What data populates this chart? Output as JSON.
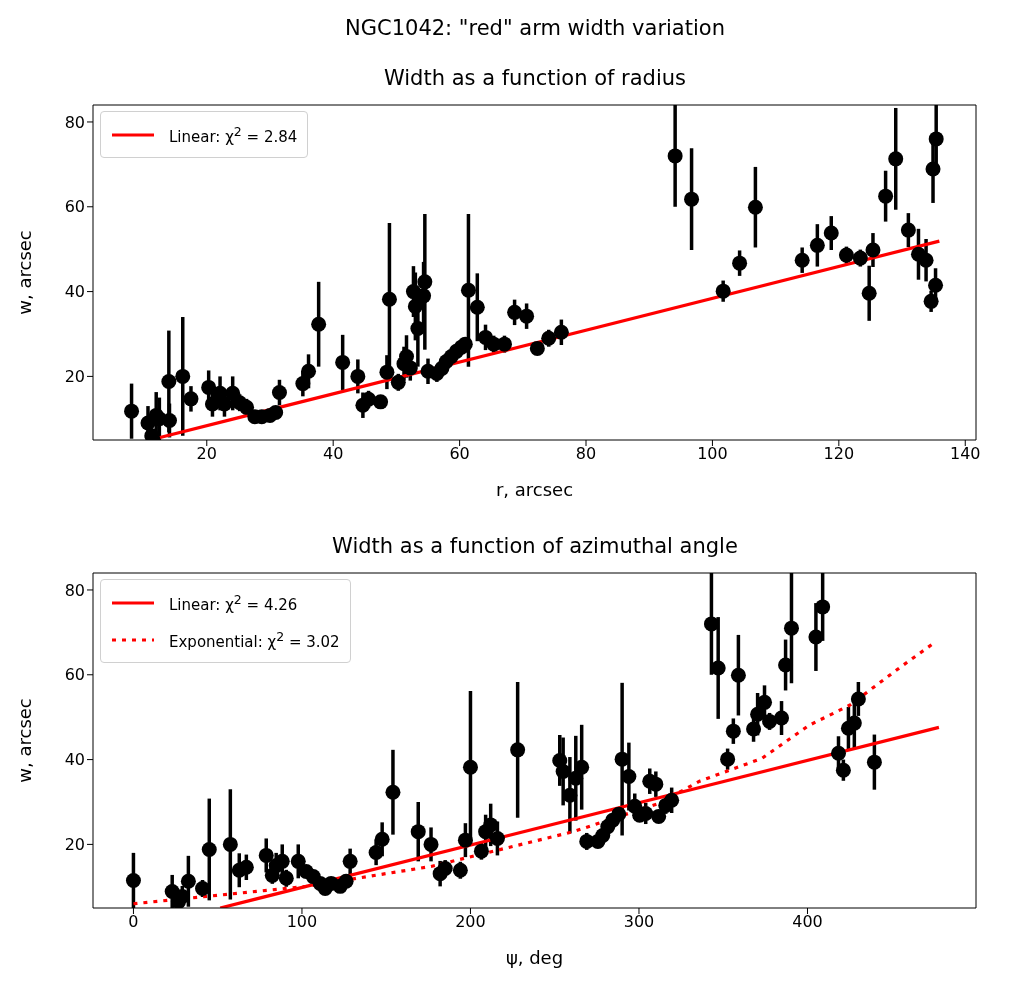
{
  "chart_data": [
    {
      "type": "scatter",
      "title": "NGC1042: \"red\" arm width variation",
      "subtitle": "Width as a function of radius",
      "xlabel": "r, arcsec",
      "ylabel": "w, arcsec",
      "xlim": [
        2,
        141.7
      ],
      "xticks": [
        20,
        40,
        60,
        80,
        100,
        120,
        140
      ],
      "ylim": [
        5,
        84
      ],
      "yticks": [
        20,
        40,
        60,
        80
      ],
      "legend": "top left",
      "series": [
        {
          "type": "scatter",
          "color": "#000000",
          "marker": "circle",
          "x": [
            8.1,
            10.7,
            11.3,
            12,
            12.5,
            14,
            14.1,
            16.2,
            17.5,
            20.3,
            20.9,
            22.1,
            22.8,
            24.1,
            25.2,
            26.3,
            27.6,
            28.7,
            30,
            30.9,
            31.5,
            35.2,
            36.1,
            37.7,
            41.5,
            43.9,
            44.7,
            45.6,
            47.5,
            48.5,
            48.9,
            50.3,
            51.2,
            51.6,
            52.2,
            52.7,
            53,
            53.4,
            54.3,
            54.5,
            55,
            56.4,
            57.2,
            57.9,
            58.7,
            59.5,
            60.3,
            60.9,
            61.4,
            62.8,
            64.1,
            65.4,
            67.1,
            68.7,
            70.6,
            72.3,
            74.1,
            76.1,
            94.1,
            96.7,
            101.7,
            104.3,
            106.8,
            114.2,
            116.6,
            118.8,
            121.2,
            123.4,
            124.8,
            125.4,
            127.4,
            129,
            131,
            132.6,
            133.8,
            134.6,
            134.9,
            135.3,
            135.4
          ],
          "values": [
            11.8,
            9,
            6,
            10.8,
            10,
            18.8,
            9.6,
            20,
            14.7,
            17.4,
            13.5,
            16,
            13.5,
            16,
            13.8,
            12.7,
            10.5,
            10.5,
            10.8,
            11.5,
            16.2,
            18.3,
            21.2,
            32.3,
            23.3,
            20,
            13.2,
            14.6,
            14,
            21,
            38.2,
            18.6,
            23,
            24.7,
            22,
            40,
            36.5,
            31.3,
            39,
            42.3,
            21.2,
            20.7,
            21.9,
            23.5,
            24.7,
            25.9,
            26.9,
            27.6,
            40.3,
            36.3,
            29.2,
            27.6,
            27.6,
            35.1,
            34.2,
            26.6,
            29,
            30.4,
            72,
            61.8,
            40.1,
            46.7,
            59.9,
            47.4,
            50.9,
            53.8,
            48.6,
            47.9,
            39.6,
            49.8,
            62.5,
            71.3,
            54.5,
            48.8,
            47.4,
            37.7,
            68.9,
            41.5,
            76
          ],
          "errors": [
            6.5,
            4,
            1,
            5.5,
            5,
            12,
            4,
            14,
            3,
            4,
            3,
            4,
            3,
            4,
            2,
            2,
            1.5,
            1.5,
            1.5,
            1.5,
            3,
            3,
            4,
            10,
            6.5,
            4,
            3,
            2,
            1.5,
            4,
            18,
            2,
            4,
            5,
            3,
            6,
            8,
            9,
            8,
            16,
            3,
            2,
            1.5,
            1.5,
            1.5,
            1.5,
            1.5,
            1.5,
            18,
            8,
            3,
            2,
            2,
            3,
            3,
            1.5,
            2,
            3,
            12,
            12,
            2.5,
            3,
            9.5,
            3,
            5,
            4,
            2,
            2,
            6.5,
            4,
            6,
            12,
            4,
            6,
            5,
            2.5,
            8,
            4,
            8
          ]
        },
        {
          "type": "line",
          "name": "Linear: χ$^{2}$ = 2.84",
          "color": "#ff0000",
          "line_style": "solid",
          "x": [
            12.6,
            135.9
          ],
          "values": [
            5.6,
            51.9
          ]
        }
      ]
    },
    {
      "type": "scatter",
      "title": "Width as a function of azimuthal angle",
      "xlabel": "ψ, deg",
      "ylabel": "w, arcsec",
      "xlim": [
        -24,
        500
      ],
      "xticks": [
        0,
        100,
        200,
        300,
        400
      ],
      "ylim": [
        5,
        84
      ],
      "yticks": [
        20,
        40,
        60,
        80
      ],
      "legend": "top left",
      "series": [
        {
          "type": "scatter",
          "color": "#000000",
          "marker": "circle",
          "x": [
            0,
            23,
            26.7,
            29,
            32.6,
            41,
            45,
            57.5,
            62.8,
            67,
            78.8,
            82.4,
            84.7,
            88.3,
            90.7,
            97.8,
            102.5,
            106.7,
            110.8,
            113.8,
            117.3,
            122.7,
            126.2,
            128.6,
            144,
            147.6,
            154,
            169,
            176.6,
            182,
            185,
            194,
            197,
            200,
            206.5,
            209,
            212,
            216,
            228,
            253,
            255,
            259,
            262.5,
            266,
            269,
            275.6,
            278.5,
            281.5,
            284.4,
            288,
            290,
            294,
            297.5,
            300.4,
            304,
            306.4,
            310,
            311.7,
            315.9,
            319.4,
            343,
            347,
            352.6,
            356,
            359,
            368,
            370.4,
            374.5,
            377.5,
            384.6,
            387,
            390.5,
            405,
            409,
            418.4,
            421.3,
            424.3,
            427.8,
            430.2,
            439.7
          ],
          "values": [
            11.5,
            8.9,
            6.5,
            7.7,
            11.3,
            9.6,
            18.8,
            20,
            13.9,
            14.6,
            17.4,
            12.7,
            15,
            16,
            12,
            16,
            13.6,
            12.4,
            10.8,
            9.6,
            10.8,
            10.1,
            11.3,
            16,
            18.1,
            21.2,
            32.3,
            23,
            20,
            13.1,
            14.3,
            13.9,
            21,
            38.2,
            18.4,
            23,
            24.6,
            21.4,
            42.3,
            39.8,
            37.2,
            31.6,
            35.6,
            38.2,
            20.7,
            20.7,
            22.1,
            24.2,
            25.7,
            27.1,
            40.1,
            36,
            29,
            26.9,
            27.3,
            34.9,
            34.2,
            26.6,
            29.2,
            30.4,
            72,
            61.6,
            40.1,
            46.7,
            59.9,
            47.2,
            50.7,
            53.5,
            49,
            49.8,
            62.3,
            71,
            68.9,
            76,
            41.5,
            37.5,
            47.4,
            48.6,
            54.3,
            39.4
          ],
          "errors": [
            6.5,
            3.9,
            1.5,
            2.5,
            6,
            2,
            12,
            13,
            4,
            3,
            4,
            2,
            3,
            4,
            2,
            4,
            1.5,
            1.5,
            1.5,
            1.5,
            1.5,
            1.5,
            1.5,
            3,
            3,
            4,
            10,
            7,
            4,
            3,
            2,
            2,
            4,
            18,
            2,
            4,
            5,
            4,
            16,
            6,
            8,
            9,
            10,
            10,
            2,
            1.5,
            1.5,
            1.5,
            1.5,
            1.5,
            18,
            8,
            3,
            1.5,
            2.5,
            3,
            3,
            1.5,
            2,
            3,
            12,
            12,
            2.5,
            3,
            9.5,
            3,
            5,
            4,
            2,
            4,
            6,
            13,
            8,
            8,
            4,
            2.5,
            5,
            6,
            4,
            6.5
          ]
        },
        {
          "type": "line",
          "name": "Linear: χ$^{2}$ = 4.26",
          "color": "#ff0000",
          "line_style": "solid",
          "x": [
            51.5,
            478
          ],
          "values": [
            5,
            47.6
          ]
        },
        {
          "type": "line",
          "name": "Exponential: χ$^{2}$ = 3.02",
          "color": "#ff0000",
          "line_style": "dotted",
          "x": [
            0,
            102.5,
            176.6,
            261,
            312,
            336,
            373,
            401,
            425,
            454.5,
            474
          ],
          "values": [
            6,
            10.1,
            14.8,
            23,
            29.7,
            34.9,
            40.3,
            48.1,
            52.8,
            61.6,
            67.2
          ]
        }
      ]
    }
  ]
}
